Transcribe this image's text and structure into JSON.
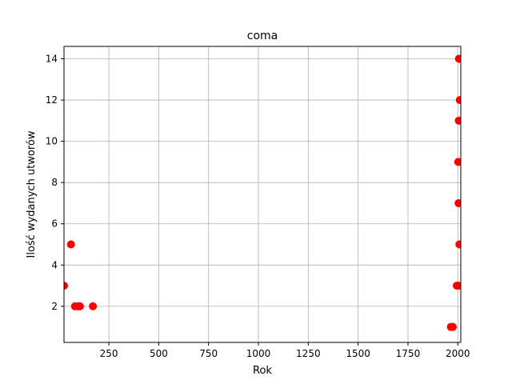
{
  "chart_data": {
    "type": "scatter",
    "title": "coma",
    "xlabel": "Rok",
    "ylabel": "Ilość wydanych utworów",
    "xlim": [
      25,
      2015
    ],
    "ylim": [
      0.25,
      14.6
    ],
    "xticks": [
      250,
      500,
      750,
      1000,
      1250,
      1500,
      1750,
      2000
    ],
    "yticks": [
      2,
      4,
      6,
      8,
      10,
      12,
      14
    ],
    "grid": true,
    "marker_color": "#ff0000",
    "points": [
      {
        "x": 25,
        "y": 3
      },
      {
        "x": 60,
        "y": 5
      },
      {
        "x": 80,
        "y": 2
      },
      {
        "x": 95,
        "y": 2
      },
      {
        "x": 105,
        "y": 2
      },
      {
        "x": 170,
        "y": 2
      },
      {
        "x": 1965,
        "y": 1
      },
      {
        "x": 1975,
        "y": 1
      },
      {
        "x": 1995,
        "y": 3
      },
      {
        "x": 2003,
        "y": 3
      },
      {
        "x": 2002,
        "y": 9
      },
      {
        "x": 2004,
        "y": 7
      },
      {
        "x": 2005,
        "y": 11
      },
      {
        "x": 2006,
        "y": 14
      },
      {
        "x": 2008,
        "y": 5
      },
      {
        "x": 2010,
        "y": 12
      }
    ]
  }
}
